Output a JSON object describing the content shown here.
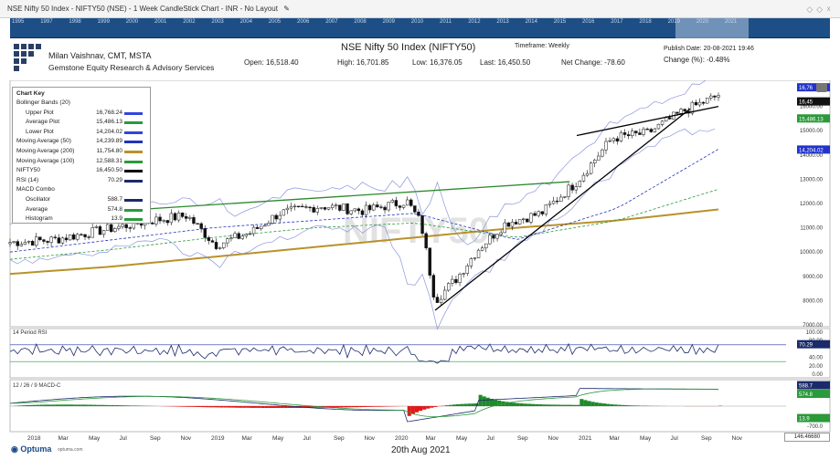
{
  "window": {
    "title": "NSE Nifty 50 Index - NIFTY50 (NSE) - 1 Week CandleStick Chart - INR - No Layout",
    "edit_icon": "pencil-icon"
  },
  "timeline": {
    "years": [
      "1995",
      "1997",
      "1998",
      "1999",
      "2000",
      "2001",
      "2002",
      "2003",
      "2004",
      "2005",
      "2006",
      "2007",
      "2008",
      "2009",
      "2010",
      "2011",
      "2012",
      "2013",
      "2014",
      "2015",
      "2016",
      "2017",
      "2018",
      "2019",
      "2020",
      "2021"
    ]
  },
  "header": {
    "author": "Milan Vaishnav, CMT, MSTA",
    "firm": "Gemstone Equity Research & Advisory Services",
    "chart_title": "NSE Nifty 50 Index (NIFTY50)",
    "timeframe": "Timeframe: Weekly",
    "publish_date": "Publish Date: 20-08-2021 19:46",
    "open": "Open: 16,518.40",
    "high": "High: 16,701.85",
    "low": "Low: 16,376.05",
    "last": "Last: 16,450.50",
    "net_change": "Net Change: -78.60",
    "change_pct": "Change (%): -0.48%"
  },
  "chart_key": {
    "title": "Chart Key",
    "rows": [
      {
        "label": "Bollinger Bands (20)",
        "value": "",
        "color": ""
      },
      {
        "label": "Upper Plot",
        "value": "16,768.24",
        "color": "#3344dd",
        "indent": true
      },
      {
        "label": "Average Plot",
        "value": "15,486.13",
        "color": "#2a9a3a",
        "indent": true
      },
      {
        "label": "Lower Plot",
        "value": "14,204.02",
        "color": "#3344dd",
        "indent": true
      },
      {
        "label": "Moving Average (50)",
        "value": "14,239.89",
        "color": "#2233bb"
      },
      {
        "label": "Moving Average (200)",
        "value": "11,754.80",
        "color": "#b8922a"
      },
      {
        "label": "Moving Average (100)",
        "value": "12,588.31",
        "color": "#2a9a3a"
      },
      {
        "label": "NIFTY50",
        "value": "16,450.50",
        "color": "#000000"
      },
      {
        "label": "RSI (14)",
        "value": "70.29",
        "color": "#1a2a6a"
      },
      {
        "label": "MACD Combo",
        "value": "",
        "color": ""
      },
      {
        "label": "Oscillator",
        "value": "588.7",
        "color": "#1a2a6a",
        "indent": true
      },
      {
        "label": "Average",
        "value": "574.8",
        "color": "#2a9a3a",
        "indent": true
      },
      {
        "label": "Histogram",
        "value": "13.9",
        "color": "#2a9a3a",
        "indent": true
      }
    ]
  },
  "panels": {
    "rsi_label": "14 Period RSI",
    "macd_label": "12 / 26 / 9 MACD-C"
  },
  "axis_labels": {
    "price_ticks": [
      "16000.00",
      "15000.00",
      "14000.00",
      "13000.00",
      "12000.00",
      "11000.00",
      "10000.00",
      "9000.00",
      "8000.00",
      "7000.00"
    ],
    "price_tag_last": "16,45",
    "price_tag_upper": "16,76",
    "price_tag_avg": "15,486.13",
    "price_tag_lower": "14,204.02",
    "rsi_ticks": [
      "100.00",
      "80.00",
      "40.00",
      "20.00",
      "0.00"
    ],
    "rsi_tag": "70.29",
    "macd_ticks": [
      "700.0",
      "-400.0",
      "-700.0"
    ],
    "macd_tag_osc": "588.7",
    "macd_tag_avg": "574.8",
    "macd_tag_hist": "13.9",
    "x_ticks": [
      "2018",
      "Mar",
      "May",
      "Jul",
      "Sep",
      "Nov",
      "2019",
      "Mar",
      "May",
      "Jul",
      "Sep",
      "Nov",
      "2020",
      "Mar",
      "May",
      "Jul",
      "Sep",
      "Nov",
      "2021",
      "Mar",
      "May",
      "Jul",
      "Sep",
      "Nov"
    ]
  },
  "watermark": "NIFTY50",
  "footer": {
    "brand": "Optuma",
    "brand_url": "optuma.com",
    "date": "20th Aug 2021",
    "coord": "146.46680"
  },
  "chart_data": {
    "type": "candlestick",
    "title": "NSE Nifty 50 Index (NIFTY50)",
    "ylim": [
      7000,
      17000
    ],
    "anchors_t": [
      0,
      0.06,
      0.13,
      0.2,
      0.25,
      0.29,
      0.34,
      0.38,
      0.44,
      0.5,
      0.56,
      0.58,
      0.6,
      0.63,
      0.66,
      0.7,
      0.75,
      0.8,
      0.85,
      0.9,
      0.95,
      1.0
    ],
    "anchors_close": [
      10400,
      10500,
      10900,
      11300,
      11500,
      10300,
      10800,
      11600,
      11900,
      11700,
      12100,
      11200,
      8000,
      8900,
      10100,
      11200,
      11600,
      12900,
      14700,
      14900,
      15800,
      16450
    ],
    "last": 16450.5,
    "ma200": [
      9100,
      9400,
      9800,
      10200,
      10600,
      11000,
      11300,
      11754.8
    ],
    "ma100": [
      9700,
      10100,
      10600,
      11000,
      11200,
      10600,
      11300,
      12588.31
    ],
    "ma50": [
      10000,
      10500,
      11000,
      11300,
      11600,
      10500,
      11800,
      14239.89
    ],
    "bb_upper": 16768.24,
    "bb_avg": 15486.13,
    "bb_lower": 14204.02,
    "rsi14": 70.29,
    "macd_oscillator": 588.7,
    "macd_average": 574.8,
    "macd_histogram": 13.9,
    "trendlines": [
      {
        "from_t": 0.18,
        "from": 11750,
        "to_t": 0.79,
        "to": 12900,
        "color": "#2a8a2a"
      },
      {
        "from_t": 0.6,
        "from": 7600,
        "to_t": 0.96,
        "to": 15900,
        "color": "#000000"
      },
      {
        "from_t": 0.8,
        "from": 14800,
        "to_t": 1.0,
        "to": 16000,
        "color": "#000000"
      }
    ]
  }
}
